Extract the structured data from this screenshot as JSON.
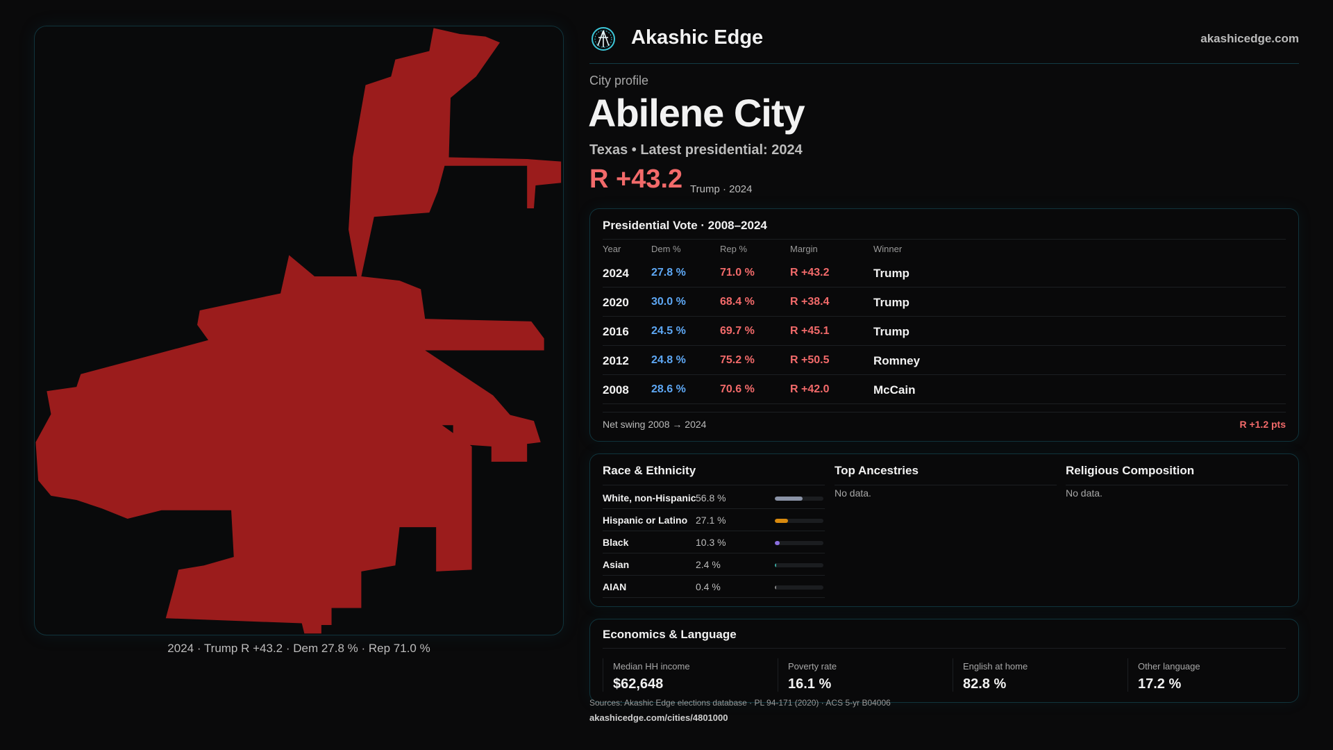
{
  "brand": {
    "name": "Akashic Edge",
    "site": "akashicedge.com",
    "logo_icon": "akashic-logo-icon"
  },
  "profile": {
    "kicker": "City profile",
    "title": "Abilene City",
    "subtitle": "Texas • Latest presidential: 2024",
    "margin": "R +43.2",
    "margin_sub": "Trump · 2024"
  },
  "map": {
    "caption": "2024 · Trump R +43.2 · Dem 27.8 % · Rep 71.0 %",
    "fill": "#9b1c1c"
  },
  "vote": {
    "title": "Presidential Vote · 2008–2024",
    "headers": [
      "Year",
      "Dem %",
      "Rep %",
      "Margin",
      "Winner"
    ],
    "rows": [
      {
        "year": "2024",
        "dem": "27.8 %",
        "rep": "71.0 %",
        "margin": "R +43.2",
        "winner": "Trump"
      },
      {
        "year": "2020",
        "dem": "30.0 %",
        "rep": "68.4 %",
        "margin": "R +38.4",
        "winner": "Trump"
      },
      {
        "year": "2016",
        "dem": "24.5 %",
        "rep": "69.7 %",
        "margin": "R +45.1",
        "winner": "Trump"
      },
      {
        "year": "2012",
        "dem": "24.8 %",
        "rep": "75.2 %",
        "margin": "R +50.5",
        "winner": "Romney"
      },
      {
        "year": "2008",
        "dem": "28.6 %",
        "rep": "70.6 %",
        "margin": "R +42.0",
        "winner": "McCain"
      }
    ],
    "swing_label": "Net swing 2008 → 2024",
    "swing_value": "R +1.2 pts"
  },
  "race": {
    "title": "Race & Ethnicity",
    "rows": [
      {
        "label": "White, non-Hispanic",
        "pct": "56.8 %",
        "value": 56.8,
        "color": "#8a93a6"
      },
      {
        "label": "Hispanic or Latino",
        "pct": "27.1 %",
        "value": 27.1,
        "color": "#d98a0e"
      },
      {
        "label": "Black",
        "pct": "10.3 %",
        "value": 10.3,
        "color": "#8b6fe0"
      },
      {
        "label": "Asian",
        "pct": "2.4 %",
        "value": 2.4,
        "color": "#3aa8a0"
      },
      {
        "label": "AIAN",
        "pct": "0.4 %",
        "value": 0.4,
        "color": "#888"
      }
    ]
  },
  "ancestries": {
    "title": "Top Ancestries",
    "empty": "No data."
  },
  "religion": {
    "title": "Religious Composition",
    "empty": "No data."
  },
  "econ": {
    "title": "Economics & Language",
    "items": [
      {
        "label": "Median HH income",
        "value": "$62,648"
      },
      {
        "label": "Poverty rate",
        "value": "16.1 %"
      },
      {
        "label": "English at home",
        "value": "82.8 %"
      },
      {
        "label": "Other language",
        "value": "17.2 %"
      }
    ]
  },
  "footer": {
    "sources": "Sources: Akashic Edge elections database · PL 94-171 (2020) · ACS 5-yr B04006",
    "url": "akashicedge.com/cities/4801000"
  }
}
